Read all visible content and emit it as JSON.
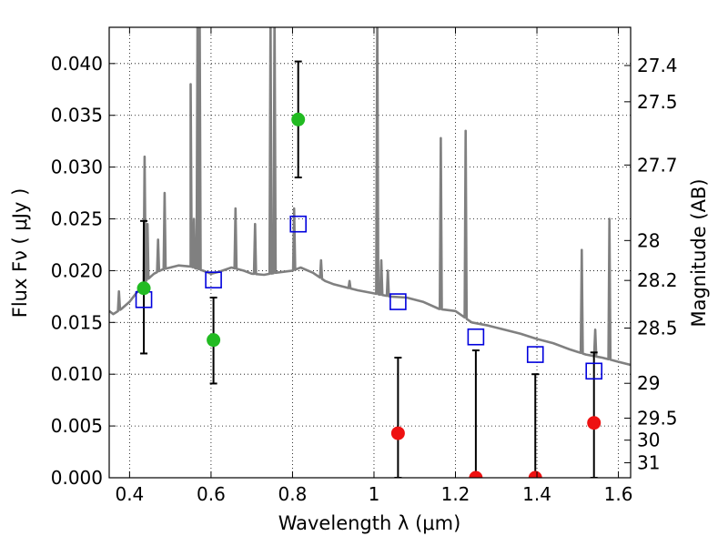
{
  "chart_data": {
    "type": "scatter",
    "title": "",
    "xlabel": "Wavelength  λ (μm)",
    "ylabel": "Flux  Fν  ( μJy )",
    "y2label": "Magnitude (AB)",
    "xlim": [
      0.35,
      1.63
    ],
    "ylim": [
      0.0,
      0.0435
    ],
    "grid": true,
    "x_ticks": [
      {
        "value": 0.4,
        "label": "0.4"
      },
      {
        "value": 0.6,
        "label": "0.6"
      },
      {
        "value": 0.8,
        "label": "0.8"
      },
      {
        "value": 1.0,
        "label": "1"
      },
      {
        "value": 1.2,
        "label": "1.2"
      },
      {
        "value": 1.4,
        "label": "1.4"
      },
      {
        "value": 1.6,
        "label": "1.6"
      }
    ],
    "y_ticks": [
      {
        "value": 0.0,
        "label": "0.000"
      },
      {
        "value": 0.005,
        "label": "0.005"
      },
      {
        "value": 0.01,
        "label": "0.010"
      },
      {
        "value": 0.015,
        "label": "0.015"
      },
      {
        "value": 0.02,
        "label": "0.020"
      },
      {
        "value": 0.025,
        "label": "0.025"
      },
      {
        "value": 0.03,
        "label": "0.030"
      },
      {
        "value": 0.035,
        "label": "0.035"
      },
      {
        "value": 0.04,
        "label": "0.040"
      }
    ],
    "y2_ticks": [
      {
        "mag": 27.4,
        "label": "27.4"
      },
      {
        "mag": 27.5,
        "label": "27.5"
      },
      {
        "mag": 27.7,
        "label": "27.7"
      },
      {
        "mag": 28.0,
        "label": "28"
      },
      {
        "mag": 28.2,
        "label": "28.2"
      },
      {
        "mag": 28.5,
        "label": "28.5"
      },
      {
        "mag": 29.0,
        "label": "29"
      },
      {
        "mag": 29.5,
        "label": "29.5"
      },
      {
        "mag": 30.0,
        "label": "30"
      },
      {
        "mag": 31.0,
        "label": "31"
      }
    ],
    "model_spectrum": {
      "color": "#808080",
      "continuum": [
        [
          0.35,
          0.0161
        ],
        [
          0.36,
          0.0158
        ],
        [
          0.38,
          0.0163
        ],
        [
          0.4,
          0.017
        ],
        [
          0.42,
          0.018
        ],
        [
          0.44,
          0.019
        ],
        [
          0.46,
          0.0197
        ],
        [
          0.48,
          0.0201
        ],
        [
          0.5,
          0.0203
        ],
        [
          0.52,
          0.0205
        ],
        [
          0.55,
          0.0204
        ],
        [
          0.58,
          0.02
        ],
        [
          0.6,
          0.0197
        ],
        [
          0.62,
          0.0199
        ],
        [
          0.65,
          0.0203
        ],
        [
          0.68,
          0.02
        ],
        [
          0.7,
          0.0197
        ],
        [
          0.73,
          0.0196
        ],
        [
          0.76,
          0.0198
        ],
        [
          0.8,
          0.02
        ],
        [
          0.82,
          0.0203
        ],
        [
          0.85,
          0.0198
        ],
        [
          0.88,
          0.019
        ],
        [
          0.9,
          0.0187
        ],
        [
          0.93,
          0.0184
        ],
        [
          0.96,
          0.0181
        ],
        [
          1.0,
          0.0178
        ],
        [
          1.04,
          0.0175
        ],
        [
          1.08,
          0.0174
        ],
        [
          1.12,
          0.017
        ],
        [
          1.16,
          0.0163
        ],
        [
          1.2,
          0.0161
        ],
        [
          1.24,
          0.015
        ],
        [
          1.28,
          0.0147
        ],
        [
          1.32,
          0.0143
        ],
        [
          1.36,
          0.0139
        ],
        [
          1.4,
          0.0134
        ],
        [
          1.44,
          0.013
        ],
        [
          1.48,
          0.0124
        ],
        [
          1.52,
          0.0119
        ],
        [
          1.56,
          0.0116
        ],
        [
          1.6,
          0.0112
        ],
        [
          1.63,
          0.0109
        ]
      ],
      "lines": [
        {
          "x": 0.374,
          "peak": 0.018
        },
        {
          "x": 0.437,
          "peak": 0.031
        },
        {
          "x": 0.444,
          "peak": 0.0245
        },
        {
          "x": 0.47,
          "peak": 0.023
        },
        {
          "x": 0.486,
          "peak": 0.0275
        },
        {
          "x": 0.55,
          "peak": 0.038
        },
        {
          "x": 0.558,
          "peak": 0.025
        },
        {
          "x": 0.567,
          "peak": 0.045
        },
        {
          "x": 0.572,
          "peak": 0.045
        },
        {
          "x": 0.66,
          "peak": 0.026
        },
        {
          "x": 0.708,
          "peak": 0.0245
        },
        {
          "x": 0.746,
          "peak": 0.045
        },
        {
          "x": 0.756,
          "peak": 0.045
        },
        {
          "x": 0.804,
          "peak": 0.026
        },
        {
          "x": 0.87,
          "peak": 0.021
        },
        {
          "x": 0.94,
          "peak": 0.019
        },
        {
          "x": 1.008,
          "peak": 0.045
        },
        {
          "x": 1.018,
          "peak": 0.021
        },
        {
          "x": 1.034,
          "peak": 0.02
        },
        {
          "x": 1.164,
          "peak": 0.0328
        },
        {
          "x": 1.225,
          "peak": 0.0335
        },
        {
          "x": 1.51,
          "peak": 0.022
        },
        {
          "x": 1.543,
          "peak": 0.0143
        },
        {
          "x": 1.578,
          "peak": 0.025
        }
      ]
    },
    "model_photometry": {
      "color": "#0000dd",
      "points": [
        {
          "x": 0.435,
          "y": 0.0172
        },
        {
          "x": 0.606,
          "y": 0.0191
        },
        {
          "x": 0.814,
          "y": 0.0245
        },
        {
          "x": 1.059,
          "y": 0.017
        },
        {
          "x": 1.25,
          "y": 0.0136
        },
        {
          "x": 1.396,
          "y": 0.0119
        },
        {
          "x": 1.54,
          "y": 0.0103
        }
      ]
    },
    "observed_detections": {
      "color": "#22bb22",
      "points": [
        {
          "x": 0.435,
          "y": 0.0183,
          "ylo": 0.012,
          "yhi": 0.0248
        },
        {
          "x": 0.606,
          "y": 0.0133,
          "ylo": 0.0091,
          "yhi": 0.0174
        },
        {
          "x": 0.814,
          "y": 0.0346,
          "ylo": 0.029,
          "yhi": 0.0402
        }
      ]
    },
    "observed_nondetections": {
      "color": "#ee1111",
      "points": [
        {
          "x": 1.059,
          "y": 0.0043,
          "ylo": 0.0,
          "yhi": 0.0116
        },
        {
          "x": 1.25,
          "y": 0.0,
          "ylo": 0.0,
          "yhi": 0.0123
        },
        {
          "x": 1.396,
          "y": 0.0,
          "ylo": 0.0,
          "yhi": 0.01
        },
        {
          "x": 1.54,
          "y": 0.0053,
          "ylo": 0.0,
          "yhi": 0.0121
        }
      ]
    }
  }
}
